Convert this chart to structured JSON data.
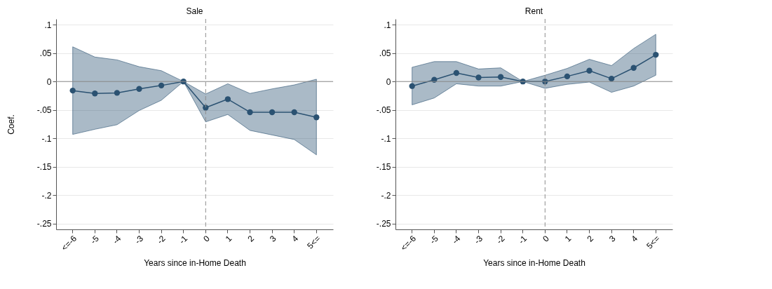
{
  "chart_data": [
    {
      "type": "line",
      "title": "Sale",
      "xlabel": "Years since in-Home Death",
      "ylabel": "Coef.",
      "categories": [
        "<=-6",
        "-5",
        "-4",
        "-3",
        "-2",
        "-1",
        "0",
        "1",
        "2",
        "3",
        "4",
        "5<="
      ],
      "series": [
        {
          "color": "#2b5272",
          "values": [
            -0.016,
            -0.021,
            -0.02,
            -0.013,
            -0.007,
            0,
            -0.046,
            -0.031,
            -0.054,
            -0.054,
            -0.054,
            -0.063
          ],
          "lower": [
            -0.093,
            -0.084,
            -0.076,
            -0.051,
            -0.033,
            0,
            -0.071,
            -0.058,
            -0.086,
            -0.094,
            -0.102,
            -0.129
          ],
          "upper": [
            0.061,
            0.043,
            0.038,
            0.026,
            0.019,
            0,
            -0.022,
            -0.004,
            -0.021,
            -0.013,
            -0.006,
            0.004
          ]
        }
      ],
      "ylim": [
        -0.26,
        0.11
      ],
      "yticks": [
        {
          "value": -0.25,
          "label": "-.25"
        },
        {
          "value": -0.2,
          "label": "-.2"
        },
        {
          "value": -0.15,
          "label": "-.15"
        },
        {
          "value": -0.1,
          "label": "-.1"
        },
        {
          "value": -0.05,
          "label": "-.05"
        },
        0,
        {
          "value": 0.05,
          "label": ".05"
        },
        {
          "value": 0.1,
          "label": ".1"
        }
      ],
      "ref_lines": [
        {
          "axis": "x",
          "value": "0",
          "line_style": "dashed",
          "color": "#8c8c8c"
        },
        {
          "axis": "y",
          "value": 0,
          "line_style": "solid",
          "color": "#8c8c8c"
        }
      ],
      "grid": "y",
      "marker": "circle",
      "line_style": "solid"
    },
    {
      "type": "line",
      "title": "Rent",
      "xlabel": "Years since in-Home Death",
      "categories": [
        "<=-6",
        "-5",
        "-4",
        "-3",
        "-2",
        "-1",
        "0",
        "1",
        "2",
        "3",
        "4",
        "5<="
      ],
      "series": [
        {
          "color": "#2b5272",
          "values": [
            -0.008,
            0.003,
            0.015,
            0.007,
            0.008,
            0,
            0,
            0.009,
            0.019,
            0.005,
            0.024,
            0.047
          ],
          "lower": [
            -0.041,
            -0.029,
            -0.004,
            -0.008,
            -0.008,
            0,
            -0.012,
            -0.005,
            -0.001,
            -0.019,
            -0.008,
            0.011
          ],
          "upper": [
            0.025,
            0.035,
            0.035,
            0.022,
            0.024,
            0,
            0.011,
            0.023,
            0.039,
            0.028,
            0.058,
            0.083
          ]
        }
      ],
      "ylim": [
        -0.26,
        0.11
      ],
      "yticks": [
        {
          "value": -0.25,
          "label": "-.25"
        },
        {
          "value": -0.2,
          "label": "-.2"
        },
        {
          "value": -0.15,
          "label": "-.15"
        },
        {
          "value": -0.1,
          "label": "-.1"
        },
        {
          "value": -0.05,
          "label": "-.05"
        },
        0,
        {
          "value": 0.05,
          "label": ".05"
        },
        {
          "value": 0.1,
          "label": ".1"
        }
      ],
      "ref_lines": [
        {
          "axis": "x",
          "value": "0",
          "line_style": "dashed",
          "color": "#8c8c8c"
        },
        {
          "axis": "y",
          "value": 0,
          "line_style": "solid",
          "color": "#8c8c8c"
        }
      ],
      "grid": "y",
      "marker": "circle",
      "line_style": "solid"
    }
  ]
}
